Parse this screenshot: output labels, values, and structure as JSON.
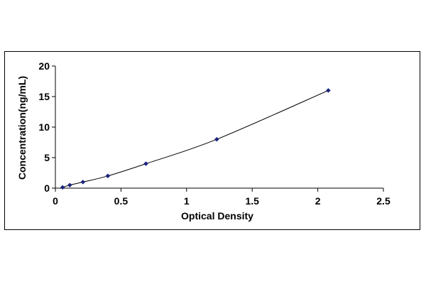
{
  "chart_data": {
    "type": "scatter",
    "title": "",
    "xlabel": "Optical Density",
    "ylabel": "Concentration(ng/mL)",
    "xlim": [
      0,
      2.5
    ],
    "ylim": [
      0,
      20
    ],
    "x_ticks": [
      "0",
      "0.5",
      "1",
      "1.5",
      "2",
      "2.5"
    ],
    "y_ticks": [
      "0",
      "5",
      "10",
      "15",
      "20"
    ],
    "grid": false,
    "legend": "none",
    "trendline": "smooth",
    "series": [
      {
        "x": [
          0.055,
          0.11,
          0.21,
          0.4,
          0.69,
          1.23,
          2.08
        ],
        "y": [
          0.125,
          0.5,
          1,
          2,
          4,
          8,
          16
        ]
      }
    ],
    "colors": {
      "marker": "#1a237e",
      "line": "#000000",
      "axis": "#000000"
    }
  }
}
